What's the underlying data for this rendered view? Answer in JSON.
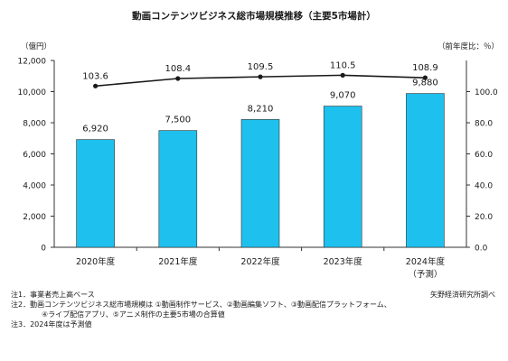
{
  "chart_data": {
    "type": "bar",
    "title": "動画コンテンツビジネス総市場規模推移（主要5市場計）",
    "left_unit": "（億円）",
    "right_unit": "（前年度比：％）",
    "categories": [
      "2020年度",
      "2021年度",
      "2022年度",
      "2023年度",
      "2024年度"
    ],
    "category_sub": [
      "",
      "",
      "",
      "",
      "（予測）"
    ],
    "series": [
      {
        "values": [
          6920,
          7500,
          8210,
          9070,
          9880
        ],
        "value_labels": [
          "6,920",
          "7,500",
          "8,210",
          "9,070",
          "9,880"
        ],
        "color": "#1ec0ee",
        "axis": "left",
        "kind": "bar"
      },
      {
        "values": [
          103.6,
          108.4,
          109.5,
          110.5,
          108.9
        ],
        "value_labels": [
          "103.6",
          "108.4",
          "109.5",
          "110.5",
          "108.9"
        ],
        "color": "#1a1a1a",
        "axis": "right",
        "kind": "line"
      }
    ],
    "ylim": [
      0,
      12000
    ],
    "yticks": [
      0,
      2000,
      4000,
      6000,
      8000,
      10000,
      12000
    ],
    "ytick_labels": [
      "0",
      "2,000",
      "4,000",
      "6,000",
      "8,000",
      "10,000",
      "12,000"
    ],
    "y2lim": [
      0,
      120
    ],
    "y2ticks": [
      0,
      20,
      40,
      60,
      80,
      100
    ],
    "y2tick_labels": [
      "0.0",
      "20.0",
      "40.0",
      "60.0",
      "80.0",
      "100.0"
    ],
    "grid": false
  },
  "notes": {
    "line1": "注1．事業者売上高ベース",
    "line2": "注2．動画コンテンツビジネス総市場規模は ①動画制作サービス、②動画編集ソフト、③動画配信プラットフォーム、",
    "line3": "④ライブ配信アプリ、⑤アニメ制作の主要5市場の合算値",
    "line4": "注3．2024年度は予測値"
  },
  "source": "矢野経済研究所調べ"
}
